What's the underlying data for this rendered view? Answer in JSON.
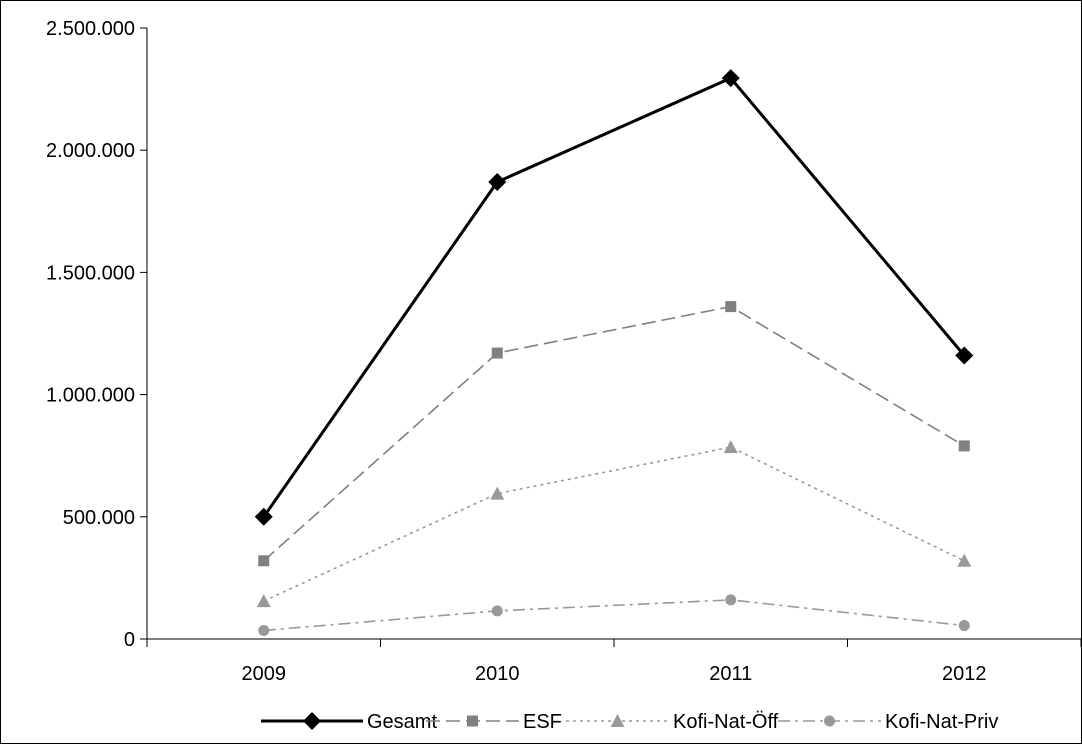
{
  "chart_data": {
    "type": "line",
    "title": "",
    "xlabel": "",
    "ylabel": "",
    "categories": [
      "2009",
      "2010",
      "2011",
      "2012"
    ],
    "ylim": [
      0,
      2500000
    ],
    "yticks": [
      0,
      500000,
      1000000,
      1500000,
      2000000,
      2500000
    ],
    "ytick_labels": [
      "0",
      "500.000",
      "1.000.000",
      "1.500.000",
      "2.000.000",
      "2.500.000"
    ],
    "grid": false,
    "legend_position": "bottom",
    "series": [
      {
        "name": "Gesamt",
        "values": [
          500000,
          1870000,
          2295000,
          1160000
        ],
        "color": "#000000",
        "marker": "diamond",
        "line": "solid"
      },
      {
        "name": "ESF",
        "values": [
          320000,
          1170000,
          1360000,
          790000
        ],
        "color": "#808080",
        "marker": "square",
        "line": "dashed"
      },
      {
        "name": "Kofi-Nat-Öff",
        "values": [
          155000,
          595000,
          785000,
          320000
        ],
        "color": "#999999",
        "marker": "triangle",
        "line": "dotted"
      },
      {
        "name": "Kofi-Nat-Priv",
        "values": [
          35000,
          115000,
          160000,
          55000
        ],
        "color": "#999999",
        "marker": "circle",
        "line": "dashdot"
      }
    ]
  }
}
